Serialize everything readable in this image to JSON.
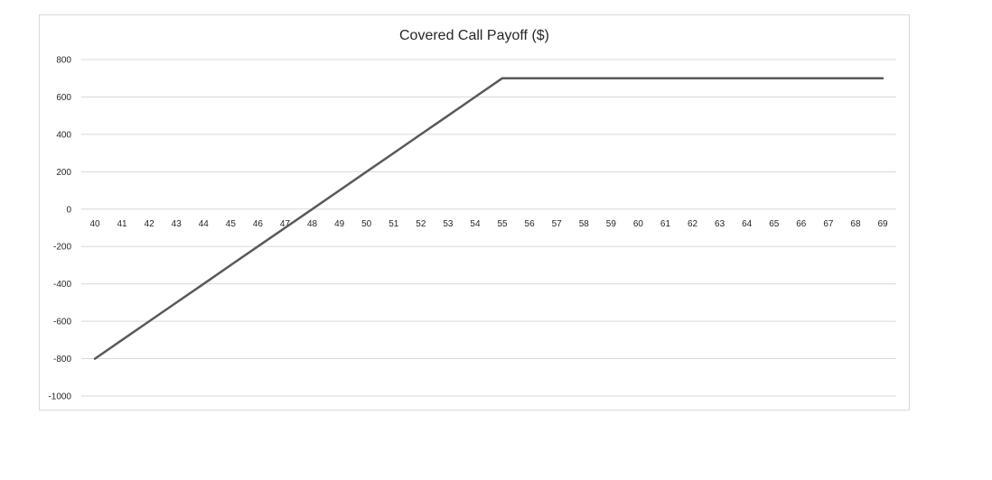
{
  "chart_data": {
    "type": "line",
    "title": "Covered Call Payoff ($)",
    "xlabel": "",
    "ylabel": "",
    "categories": [
      40,
      41,
      42,
      43,
      44,
      45,
      46,
      47,
      48,
      49,
      50,
      51,
      52,
      53,
      54,
      55,
      56,
      57,
      58,
      59,
      60,
      61,
      62,
      63,
      64,
      65,
      66,
      67,
      68,
      69
    ],
    "series": [
      {
        "values": [
          -800,
          -700,
          -600,
          -500,
          -400,
          -300,
          -200,
          -100,
          0,
          100,
          200,
          300,
          400,
          500,
          600,
          700,
          700,
          700,
          700,
          700,
          700,
          700,
          700,
          700,
          700,
          700,
          700,
          700,
          700,
          700
        ]
      }
    ],
    "yticks": [
      800,
      600,
      400,
      200,
      0,
      -200,
      -400,
      -600,
      -800,
      -1000
    ],
    "ylim": [
      -1000,
      800
    ],
    "grid": true,
    "legend": "none",
    "line_color": "#595959",
    "grid_color": "#d9d9d9"
  }
}
